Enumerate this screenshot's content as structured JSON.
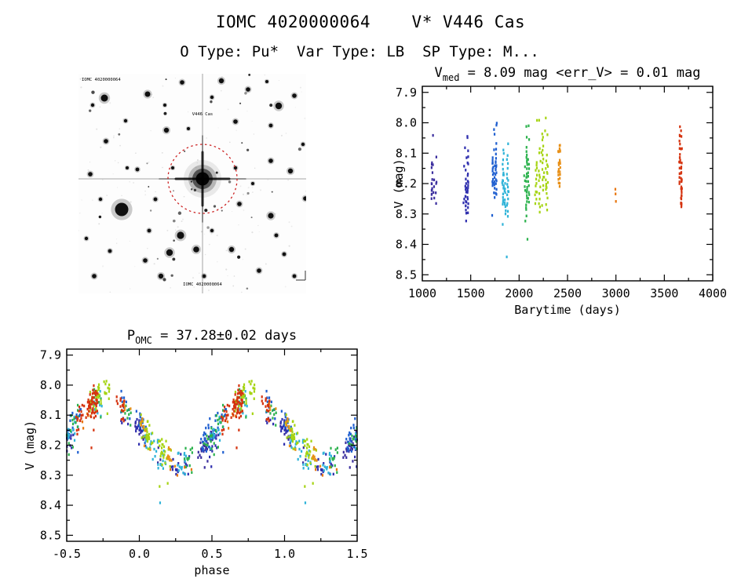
{
  "page": {
    "title": "IOMC 4020000064    V* V446 Cas",
    "subtitle": "O Type: Pu*  Var Type: LB  SP Type: M..."
  },
  "colors": {
    "annotation_red": "#cc2222",
    "axis_black": "#000000"
  },
  "finder": {
    "annotations": {
      "top_left": "IOMC 4020000064",
      "target": "V446 Cas",
      "bottom": "IOMC 4020000064"
    },
    "central": [
      158,
      134
    ],
    "circle_radius": 44,
    "stars": [
      [
        55,
        173,
        8.5
      ],
      [
        33,
        31,
        4.5
      ],
      [
        88,
        26,
        3.5
      ],
      [
        132,
        11,
        2.8
      ],
      [
        182,
        9,
        3.2
      ],
      [
        216,
        20,
        2.8
      ],
      [
        255,
        41,
        4.2
      ],
      [
        275,
        28,
        2.8
      ],
      [
        200,
        61,
        2.8
      ],
      [
        112,
        72,
        3.2
      ],
      [
        35,
        86,
        2.8
      ],
      [
        15,
        128,
        2.8
      ],
      [
        75,
        122,
        2.4
      ],
      [
        245,
        111,
        2.8
      ],
      [
        270,
        124,
        3.2
      ],
      [
        289,
        159,
        2.8
      ],
      [
        205,
        166,
        2.8
      ],
      [
        245,
        181,
        3.6
      ],
      [
        130,
        206,
        4.6
      ],
      [
        150,
        224,
        3.8
      ],
      [
        116,
        228,
        4.2
      ],
      [
        195,
        224,
        3.2
      ],
      [
        85,
        238,
        2.8
      ],
      [
        40,
        226,
        2.4
      ],
      [
        20,
        258,
        2.8
      ],
      [
        105,
        258,
        3.2
      ],
      [
        160,
        258,
        2.4
      ],
      [
        230,
        251,
        2.8
      ],
      [
        275,
        258,
        2.4
      ],
      [
        252,
        206,
        2.4
      ],
      [
        60,
        60,
        2.2
      ],
      [
        245,
        66,
        2.4
      ],
      [
        110,
        40,
        2.0
      ],
      [
        170,
        30,
        2.2
      ],
      [
        28,
        160,
        2.2
      ],
      [
        120,
        120,
        2.0
      ],
      [
        200,
        120,
        2.2
      ],
      [
        98,
        160,
        2.4
      ],
      [
        222,
        140,
        2.0
      ],
      [
        62,
        120,
        2.0
      ],
      [
        90,
        200,
        2.4
      ],
      [
        170,
        200,
        2.2
      ],
      [
        262,
        230,
        2.4
      ],
      [
        140,
        70,
        2.0
      ],
      [
        18,
        40,
        2.2
      ],
      [
        286,
        90,
        2.2
      ],
      [
        240,
        10,
        2.0
      ],
      [
        10,
        210,
        2.2
      ]
    ]
  },
  "chart_data": [
    {
      "type": "scatter",
      "title": {
        "main": "V",
        "sub": "med",
        "rest": " = 8.09 mag <err_V> = 0.01 mag"
      },
      "v_med_mag": 8.09,
      "err_v_mag": 0.01,
      "xlabel": "Barytime (days)",
      "ylabel": "V (mag)",
      "xlim": [
        1000,
        4000
      ],
      "ylim": [
        8.52,
        7.88
      ],
      "y_axis_inverted": true,
      "grid": false,
      "xtick_values": [
        1000,
        1500,
        2000,
        2500,
        3000,
        3500,
        4000
      ],
      "xtick_labels": [
        "1000",
        "1500",
        "2000",
        "2500",
        "3000",
        "3500",
        "4000"
      ],
      "ytick_values": [
        7.9,
        8.0,
        8.1,
        8.2,
        8.3,
        8.4,
        8.5
      ],
      "ytick_labels": [
        "7.9",
        "8.0",
        "8.1",
        "8.2",
        "8.3",
        "8.4",
        "8.5"
      ],
      "x_minor_step": 250,
      "y_minor_step": 0.05,
      "clusters": [
        {
          "name": "epoch-1",
          "color": "#3b2e9e",
          "t": 1120,
          "spread": 60,
          "cols": 3,
          "core": [
            8.12,
            8.26
          ],
          "lo": 7.99,
          "hi": 8.28,
          "n": 42
        },
        {
          "name": "epoch-2",
          "color": "#2f2fae",
          "t": 1450,
          "spread": 58,
          "cols": 3,
          "core": [
            8.09,
            8.34
          ],
          "lo": 8.04,
          "hi": 8.37,
          "n": 55
        },
        {
          "name": "epoch-3",
          "color": "#1f5fd0",
          "t": 1745,
          "spread": 50,
          "cols": 3,
          "core": [
            8.0,
            8.28
          ],
          "lo": 7.99,
          "hi": 8.31,
          "n": 70
        },
        {
          "name": "epoch-4",
          "color": "#2fb3d8",
          "t": 1858,
          "spread": 68,
          "cols": 3,
          "core": [
            8.05,
            8.34
          ],
          "lo": 8.02,
          "hi": 8.45,
          "n": 70
        },
        {
          "name": "epoch-5",
          "color": "#2db24e",
          "t": 2078,
          "spread": 62,
          "cols": 3,
          "core": [
            8.04,
            8.3
          ],
          "lo": 8.0,
          "hi": 8.42,
          "n": 62
        },
        {
          "name": "epoch-6",
          "color": "#a6d414",
          "t": 2230,
          "spread": 150,
          "cols": 4,
          "core": [
            7.99,
            8.3
          ],
          "lo": 7.98,
          "hi": 8.31,
          "n": 95
        },
        {
          "name": "epoch-7",
          "color": "#e89018",
          "t": 2415,
          "spread": 28,
          "cols": 2,
          "core": [
            8.03,
            8.25
          ],
          "lo": 8.02,
          "hi": 8.27,
          "n": 26
        },
        {
          "name": "epoch-8",
          "color": "#e8760e",
          "t": 3000,
          "spread": 14,
          "cols": 1,
          "core": [
            8.22,
            8.27
          ],
          "lo": 8.21,
          "hi": 8.28,
          "n": 10
        },
        {
          "name": "epoch-9",
          "color": "#d5330f",
          "t": 3668,
          "spread": 30,
          "cols": 2,
          "core": [
            8.0,
            8.33
          ],
          "lo": 7.99,
          "hi": 8.34,
          "n": 85
        }
      ]
    },
    {
      "type": "scatter",
      "title": {
        "main": "P",
        "sub": "OMC",
        "rest": " = 37.28±0.02 days"
      },
      "xlabel": "phase",
      "ylabel": "V (mag)",
      "xlim": [
        -0.5,
        1.5
      ],
      "ylim": [
        8.52,
        7.88
      ],
      "y_axis_inverted": true,
      "grid": false,
      "xtick_values": [
        -0.5,
        0.0,
        0.5,
        1.0,
        1.5
      ],
      "xtick_labels": [
        "-0.5",
        "0.0",
        "0.5",
        "1.0",
        "1.5"
      ],
      "ytick_values": [
        7.9,
        8.0,
        8.1,
        8.2,
        8.3,
        8.4,
        8.5
      ],
      "ytick_labels": [
        "7.9",
        "8.0",
        "8.1",
        "8.2",
        "8.3",
        "8.4",
        "8.5"
      ],
      "x_minor_step": 0.25,
      "y_minor_step": 0.05,
      "fold": {
        "period_days": 37.28,
        "period_err_days": 0.02,
        "mean_mag": 8.145,
        "amplitude": 0.105,
        "min_phase": 0.27
      }
    }
  ]
}
